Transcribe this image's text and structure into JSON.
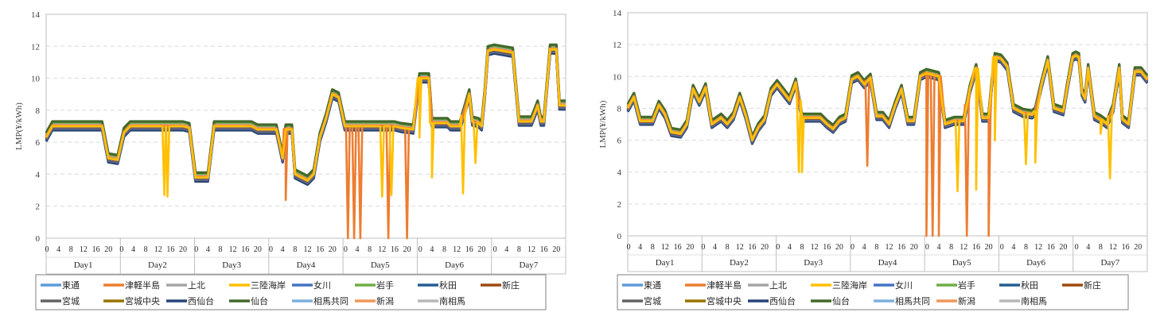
{
  "chart_data": [
    {
      "type": "line",
      "ylabel": "LMP(¥/kWh)",
      "ylim": [
        0,
        14
      ],
      "yticks": [
        0,
        2,
        4,
        6,
        8,
        10,
        12,
        14
      ],
      "hour_ticks": [
        "0",
        "4",
        "8",
        "12",
        "16",
        "20"
      ],
      "days": [
        "Day1",
        "Day2",
        "Day3",
        "Day4",
        "Day5",
        "Day6",
        "Day7"
      ],
      "grid": true,
      "legend_position": "bottom",
      "legend": [
        "東通",
        "津軽半島",
        "上北",
        "三陸海岸",
        "女川",
        "岩手",
        "秋田",
        "新庄",
        "宮城",
        "宮城中央",
        "西仙台",
        "仙台",
        "相馬共同",
        "新潟",
        "南相馬"
      ],
      "x_unit": "hour (0-167)",
      "base_series": [
        [
          0,
          6.3
        ],
        [
          2,
          7.0
        ],
        [
          18,
          7.0
        ],
        [
          20,
          5.0
        ],
        [
          23,
          4.9
        ],
        [
          25,
          6.6
        ],
        [
          27,
          7.0
        ],
        [
          44,
          7.0
        ],
        [
          46,
          6.9
        ],
        [
          48,
          3.8
        ],
        [
          52,
          3.8
        ],
        [
          54,
          7.0
        ],
        [
          66,
          7.0
        ],
        [
          68,
          6.8
        ],
        [
          74,
          6.8
        ],
        [
          76,
          5.0
        ],
        [
          77,
          6.8
        ],
        [
          79,
          6.8
        ],
        [
          80,
          4.0
        ],
        [
          82,
          3.8
        ],
        [
          84,
          3.6
        ],
        [
          86,
          4.0
        ],
        [
          88,
          6.3
        ],
        [
          90,
          7.5
        ],
        [
          92,
          9.0
        ],
        [
          94,
          8.8
        ],
        [
          96,
          7.0
        ],
        [
          112,
          7.0
        ],
        [
          114,
          6.9
        ],
        [
          118,
          6.8
        ],
        [
          120,
          10.0
        ],
        [
          123,
          10.0
        ],
        [
          124,
          7.2
        ],
        [
          129,
          7.2
        ],
        [
          130,
          7.0
        ],
        [
          133,
          7.0
        ],
        [
          136,
          9.0
        ],
        [
          137,
          7.3
        ],
        [
          139,
          7.2
        ],
        [
          140,
          7.0
        ],
        [
          141,
          9.0
        ],
        [
          142,
          11.7
        ],
        [
          144,
          11.8
        ],
        [
          150,
          11.6
        ],
        [
          152,
          7.3
        ],
        [
          156,
          7.3
        ],
        [
          158,
          8.3
        ],
        [
          159,
          7.3
        ],
        [
          160,
          7.3
        ],
        [
          162,
          11.8
        ],
        [
          164,
          11.8
        ],
        [
          165,
          8.3
        ],
        [
          167,
          8.3
        ]
      ],
      "offsets": {
        "東通": 0.05,
        "津軽半島": 0.02,
        "上北": 0.15,
        "三陸海岸": 0.0,
        "女川": -0.1,
        "岩手": 0.25,
        "秋田": -0.2,
        "新庄": -0.05,
        "宮城": -0.15,
        "宮城中央": 0.1,
        "西仙台": -0.25,
        "仙台": 0.3,
        "相馬共同": 0.0,
        "新潟": 0.05,
        "南相馬": 0.2
      },
      "dips": [
        {
          "series": "三陸海岸",
          "x": 38,
          "y": 2.7
        },
        {
          "series": "三陸海岸",
          "x": 39,
          "y": 2.6
        },
        {
          "series": "津軽半島",
          "x": 77,
          "y": 2.4
        },
        {
          "series": "津軽半島",
          "x": 97,
          "y": 0
        },
        {
          "series": "津軽半島",
          "x": 99,
          "y": 0
        },
        {
          "series": "津軽半島",
          "x": 101,
          "y": 0
        },
        {
          "series": "三陸海岸",
          "x": 108,
          "y": 2.6
        },
        {
          "series": "津軽半島",
          "x": 110,
          "y": 0
        },
        {
          "series": "三陸海岸",
          "x": 111,
          "y": 2.7
        },
        {
          "series": "津軽半島",
          "x": 116,
          "y": 0
        },
        {
          "series": "三陸海岸",
          "x": 120,
          "y": 6.3
        },
        {
          "series": "三陸海岸",
          "x": 124,
          "y": 3.8
        },
        {
          "series": "三陸海岸",
          "x": 134,
          "y": 2.8
        },
        {
          "series": "三陸海岸",
          "x": 138,
          "y": 4.7
        }
      ]
    },
    {
      "type": "line",
      "ylabel": "LMP(¥/kWh)",
      "ylim": [
        0,
        14
      ],
      "yticks": [
        0,
        2,
        4,
        6,
        8,
        10,
        12,
        14
      ],
      "hour_ticks": [
        "0",
        "4",
        "8",
        "12",
        "16",
        "20"
      ],
      "days": [
        "Day1",
        "Day2",
        "Day3",
        "Day4",
        "Day5",
        "Day6",
        "Day7"
      ],
      "grid": true,
      "legend_position": "bottom",
      "legend": [
        "東通",
        "津軽半島",
        "上北",
        "三陸海岸",
        "女川",
        "岩手",
        "秋田",
        "新庄",
        "宮城",
        "宮城中央",
        "西仙台",
        "仙台",
        "相馬共同",
        "新潟",
        "南相馬"
      ],
      "x_unit": "hour (0-167)",
      "base_series": [
        [
          0,
          8.0
        ],
        [
          2,
          8.7
        ],
        [
          4,
          7.2
        ],
        [
          8,
          7.2
        ],
        [
          10,
          8.2
        ],
        [
          12,
          7.6
        ],
        [
          14,
          6.5
        ],
        [
          17,
          6.4
        ],
        [
          19,
          7.0
        ],
        [
          21,
          9.2
        ],
        [
          23,
          8.4
        ],
        [
          25,
          9.3
        ],
        [
          27,
          7.0
        ],
        [
          30,
          7.4
        ],
        [
          32,
          7.0
        ],
        [
          34,
          7.5
        ],
        [
          36,
          8.7
        ],
        [
          38,
          7.5
        ],
        [
          40,
          6.0
        ],
        [
          42,
          6.8
        ],
        [
          44,
          7.3
        ],
        [
          46,
          9.0
        ],
        [
          48,
          9.5
        ],
        [
          50,
          9.0
        ],
        [
          52,
          8.5
        ],
        [
          54,
          9.6
        ],
        [
          56,
          7.4
        ],
        [
          62,
          7.4
        ],
        [
          64,
          7.0
        ],
        [
          66,
          6.7
        ],
        [
          68,
          7.2
        ],
        [
          70,
          7.4
        ],
        [
          72,
          9.8
        ],
        [
          74,
          10.0
        ],
        [
          76,
          9.5
        ],
        [
          78,
          9.9
        ],
        [
          80,
          7.5
        ],
        [
          82,
          7.5
        ],
        [
          84,
          7.0
        ],
        [
          86,
          8.2
        ],
        [
          88,
          9.2
        ],
        [
          90,
          7.2
        ],
        [
          92,
          7.2
        ],
        [
          94,
          10.0
        ],
        [
          96,
          10.2
        ],
        [
          100,
          10.0
        ],
        [
          102,
          7.0
        ],
        [
          105,
          7.2
        ],
        [
          108,
          7.2
        ],
        [
          110,
          9.2
        ],
        [
          112,
          10.5
        ],
        [
          114,
          7.4
        ],
        [
          116,
          7.4
        ],
        [
          117,
          9.5
        ],
        [
          118,
          11.2
        ],
        [
          120,
          11.1
        ],
        [
          122,
          10.6
        ],
        [
          124,
          8.0
        ],
        [
          127,
          7.7
        ],
        [
          130,
          7.6
        ],
        [
          131,
          7.8
        ],
        [
          133,
          9.5
        ],
        [
          135,
          11.0
        ],
        [
          137,
          8.0
        ],
        [
          140,
          7.8
        ],
        [
          141,
          9.0
        ],
        [
          143,
          11.2
        ],
        [
          144,
          11.3
        ],
        [
          145,
          11.2
        ],
        [
          146,
          9.0
        ],
        [
          147,
          8.6
        ],
        [
          148,
          10.5
        ],
        [
          150,
          7.5
        ],
        [
          152,
          7.3
        ],
        [
          154,
          7.0
        ],
        [
          156,
          8.0
        ],
        [
          158,
          10.5
        ],
        [
          159,
          7.3
        ],
        [
          161,
          7.0
        ],
        [
          163,
          10.3
        ],
        [
          165,
          10.3
        ],
        [
          167,
          9.8
        ]
      ],
      "offsets": {
        "東通": 0.05,
        "津軽半島": 0.02,
        "上北": 0.12,
        "三陸海岸": 0.0,
        "女川": -0.1,
        "岩手": 0.22,
        "秋田": -0.18,
        "新庄": -0.05,
        "宮城": -0.14,
        "宮城中央": 0.08,
        "西仙台": -0.22,
        "仙台": 0.26,
        "相馬共同": 0.0,
        "新潟": 0.05,
        "南相馬": 0.18
      },
      "dips": [
        {
          "series": "三陸海岸",
          "x": 55,
          "y": 4.0
        },
        {
          "series": "三陸海岸",
          "x": 56,
          "y": 4.0
        },
        {
          "series": "津軽半島",
          "x": 77,
          "y": 4.4
        },
        {
          "series": "津軽半島",
          "x": 96,
          "y": 0
        },
        {
          "series": "津軽半島",
          "x": 98,
          "y": 0
        },
        {
          "series": "津軽半島",
          "x": 100,
          "y": 0
        },
        {
          "series": "三陸海岸",
          "x": 106,
          "y": 2.8
        },
        {
          "series": "津軽半島",
          "x": 109,
          "y": 0
        },
        {
          "series": "三陸海岸",
          "x": 112,
          "y": 2.9
        },
        {
          "series": "津軽半島",
          "x": 116,
          "y": 0
        },
        {
          "series": "三陸海岸",
          "x": 118,
          "y": 6.0
        },
        {
          "series": "三陸海岸",
          "x": 128,
          "y": 4.5
        },
        {
          "series": "三陸海岸",
          "x": 131,
          "y": 4.6
        },
        {
          "series": "三陸海岸",
          "x": 155,
          "y": 3.6
        },
        {
          "series": "三陸海岸",
          "x": 152,
          "y": 6.4
        }
      ]
    }
  ],
  "series_colors": {
    "東通": "#5b9bd5",
    "津軽半島": "#ed7d31",
    "上北": "#a5a5a5",
    "三陸海岸": "#ffc000",
    "女川": "#4472c4",
    "岩手": "#70ad47",
    "秋田": "#255e91",
    "新庄": "#9e480e",
    "宮城": "#636363",
    "宮城中央": "#997300",
    "西仙台": "#264478",
    "仙台": "#43682b",
    "相馬共同": "#7cafdd",
    "新潟": "#f1975a",
    "南相馬": "#b7b7b7"
  }
}
